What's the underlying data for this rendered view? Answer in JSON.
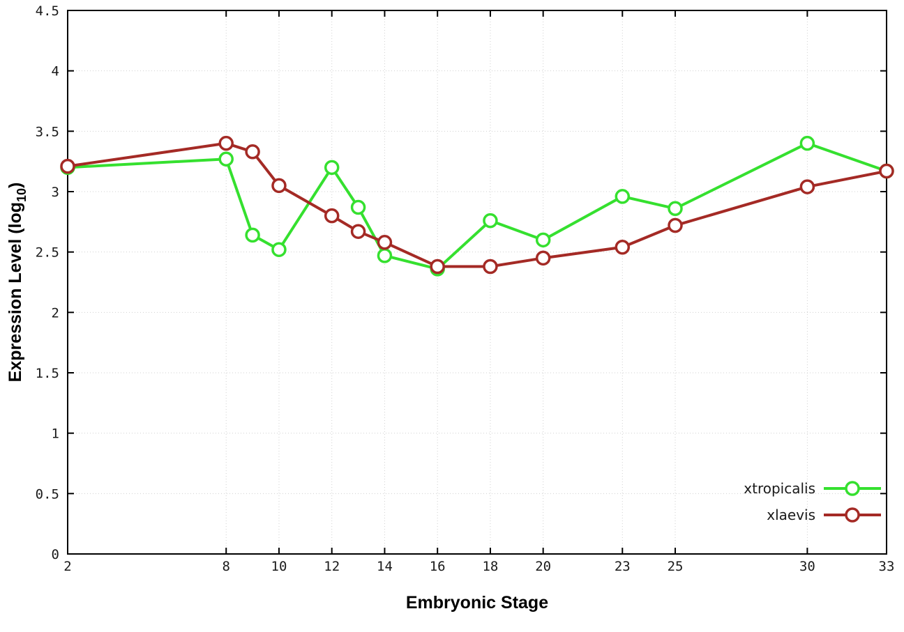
{
  "chart_data": {
    "type": "line",
    "title": "",
    "xlabel": "Embryonic Stage",
    "ylabel": "Expression Level (log10)",
    "ylabel_parts": {
      "main": "Expression Level (log",
      "sub": "10",
      "end": ")"
    },
    "x": [
      2,
      8,
      9,
      10,
      12,
      13,
      14,
      16,
      18,
      20,
      23,
      25,
      30,
      33
    ],
    "series": [
      {
        "name": "xtropicalis",
        "color": "#35e02f",
        "values": [
          3.2,
          3.27,
          2.64,
          2.52,
          3.2,
          2.87,
          2.47,
          2.36,
          2.76,
          2.6,
          2.96,
          2.86,
          3.4,
          3.17
        ]
      },
      {
        "name": "xlaevis",
        "color": "#a42a25",
        "values": [
          3.21,
          3.4,
          3.33,
          3.05,
          2.8,
          2.67,
          2.58,
          2.38,
          2.38,
          2.45,
          2.54,
          2.72,
          3.04,
          3.17
        ]
      }
    ],
    "xlim": [
      2,
      33
    ],
    "ylim": [
      0,
      4.5
    ],
    "xticks": [
      2,
      8,
      10,
      12,
      14,
      16,
      18,
      20,
      23,
      25,
      30,
      33
    ],
    "xtick_labels": [
      "2",
      "8",
      "10",
      "12",
      "14",
      "16",
      "18",
      "20",
      "23",
      "25",
      "30",
      "33"
    ],
    "yticks": [
      0,
      0.5,
      1,
      1.5,
      2,
      2.5,
      3,
      3.5,
      4,
      4.5
    ],
    "ytick_labels": [
      "0",
      "0.5",
      "1",
      "1.5",
      "2",
      "2.5",
      "3",
      "3.5",
      "4",
      "4.5"
    ],
    "grid": true,
    "grid_color": "#d0d0d0",
    "border_color": "#000000",
    "legend_position": "bottom-right",
    "marker": "open-circle"
  }
}
